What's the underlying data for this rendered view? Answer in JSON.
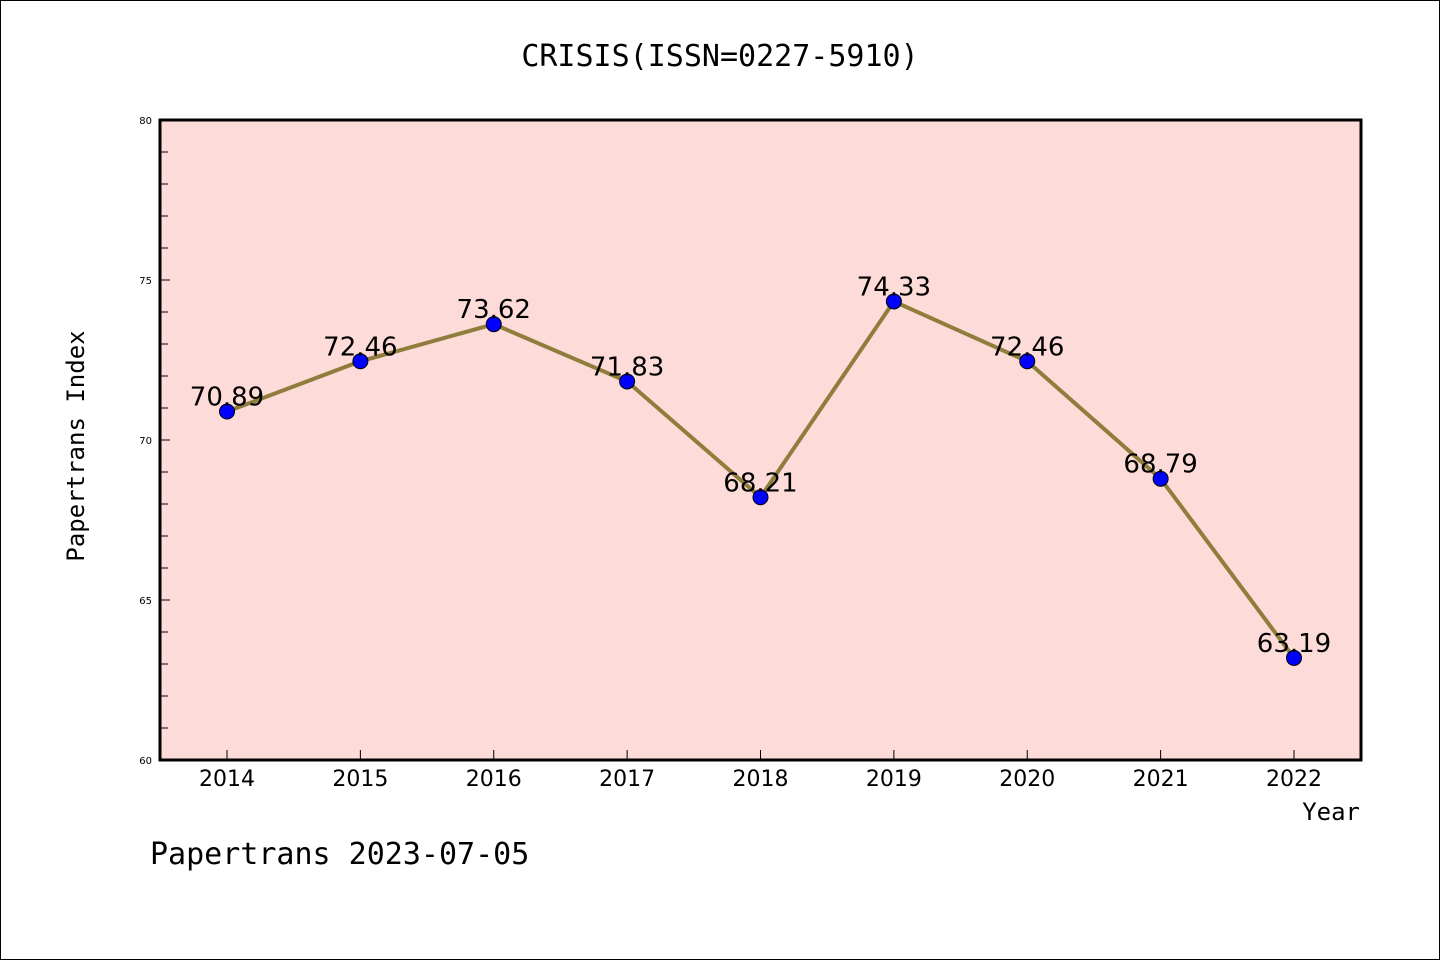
{
  "chart_data": {
    "type": "line",
    "title": "CRISIS(ISSN=0227-5910)",
    "xlabel": "Year",
    "ylabel": "Papertrans Index",
    "x": [
      "2014",
      "2015",
      "2016",
      "2017",
      "2018",
      "2019",
      "2020",
      "2021",
      "2022"
    ],
    "series": [
      {
        "values": [
          70.89,
          72.46,
          73.62,
          71.83,
          68.21,
          74.33,
          72.46,
          68.79,
          63.19
        ],
        "labels": [
          "70.89",
          "72.46",
          "73.62",
          "71.83",
          "68.21",
          "74.33",
          "72.46",
          "68.79",
          "63.19"
        ]
      }
    ],
    "ylim": [
      60,
      80
    ],
    "yticks": [
      "60",
      "65",
      "70",
      "75",
      "80"
    ],
    "grid": false,
    "colors": {
      "plot_background": "#fddbd9",
      "line": "#8f7d3b",
      "marker": "#0000ff"
    }
  },
  "footer": "Papertrans 2023-07-05"
}
